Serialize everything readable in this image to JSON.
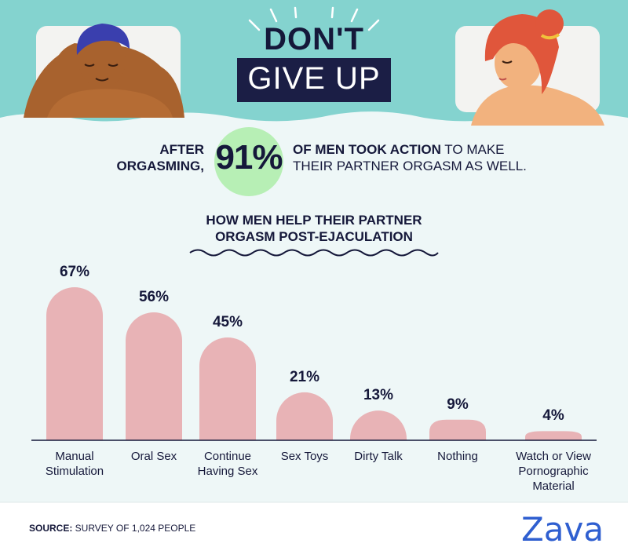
{
  "header": {
    "title_line1": "DON'T",
    "title_line2": "GIVE UP"
  },
  "stat": {
    "lead": "AFTER\nORGASMING,",
    "value": "91%",
    "bold_text": "OF MEN TOOK ACTION",
    "rest_text": " TO MAKE",
    "line2": "THEIR PARTNER ORGASM AS WELL."
  },
  "chart_title": "HOW MEN HELP THEIR PARTNER\nORGASM POST-EJACULATION",
  "chart_data": {
    "type": "bar",
    "title": "HOW MEN HELP THEIR PARTNER ORGASM POST-EJACULATION",
    "categories": [
      "Manual\nStimulation",
      "Oral Sex",
      "Continue\nHaving Sex",
      "Sex Toys",
      "Dirty Talk",
      "Nothing",
      "Watch or View\nPornographic\nMaterial"
    ],
    "values": [
      67,
      56,
      45,
      21,
      13,
      9,
      4
    ],
    "value_labels": [
      "67%",
      "56%",
      "45%",
      "21%",
      "13%",
      "9%",
      "4%"
    ],
    "unit": "%",
    "ylim": [
      0,
      67
    ],
    "grid": false,
    "bar_color": "#e8b3b6"
  },
  "footer": {
    "source_label": "SOURCE:",
    "source_text": " SURVEY OF 1,024 PEOPLE",
    "brand": "Zava"
  },
  "colors": {
    "sky": "#84d3cf",
    "navy": "#1b1e45",
    "stat_circle": "#b7efb5",
    "bar": "#e8b3b6",
    "brand": "#2f5fd0",
    "panel": "#eef7f7"
  }
}
